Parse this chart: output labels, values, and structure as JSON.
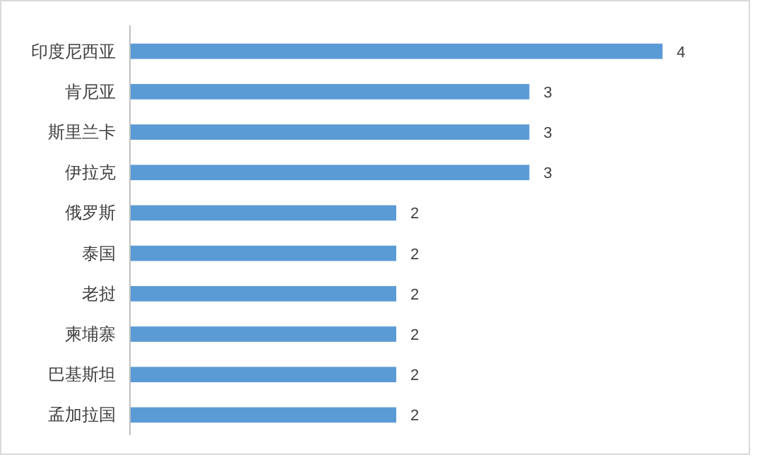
{
  "chart_data": {
    "type": "bar",
    "orientation": "horizontal",
    "categories": [
      "印度尼西亚",
      "肯尼亚",
      "斯里兰卡",
      "伊拉克",
      "俄罗斯",
      "泰国",
      "老挝",
      "柬埔寨",
      "巴基斯坦",
      "孟加拉国"
    ],
    "values": [
      4,
      3,
      3,
      3,
      2,
      2,
      2,
      2,
      2,
      2
    ],
    "color": "#5b9bd5",
    "data_labels": true
  }
}
